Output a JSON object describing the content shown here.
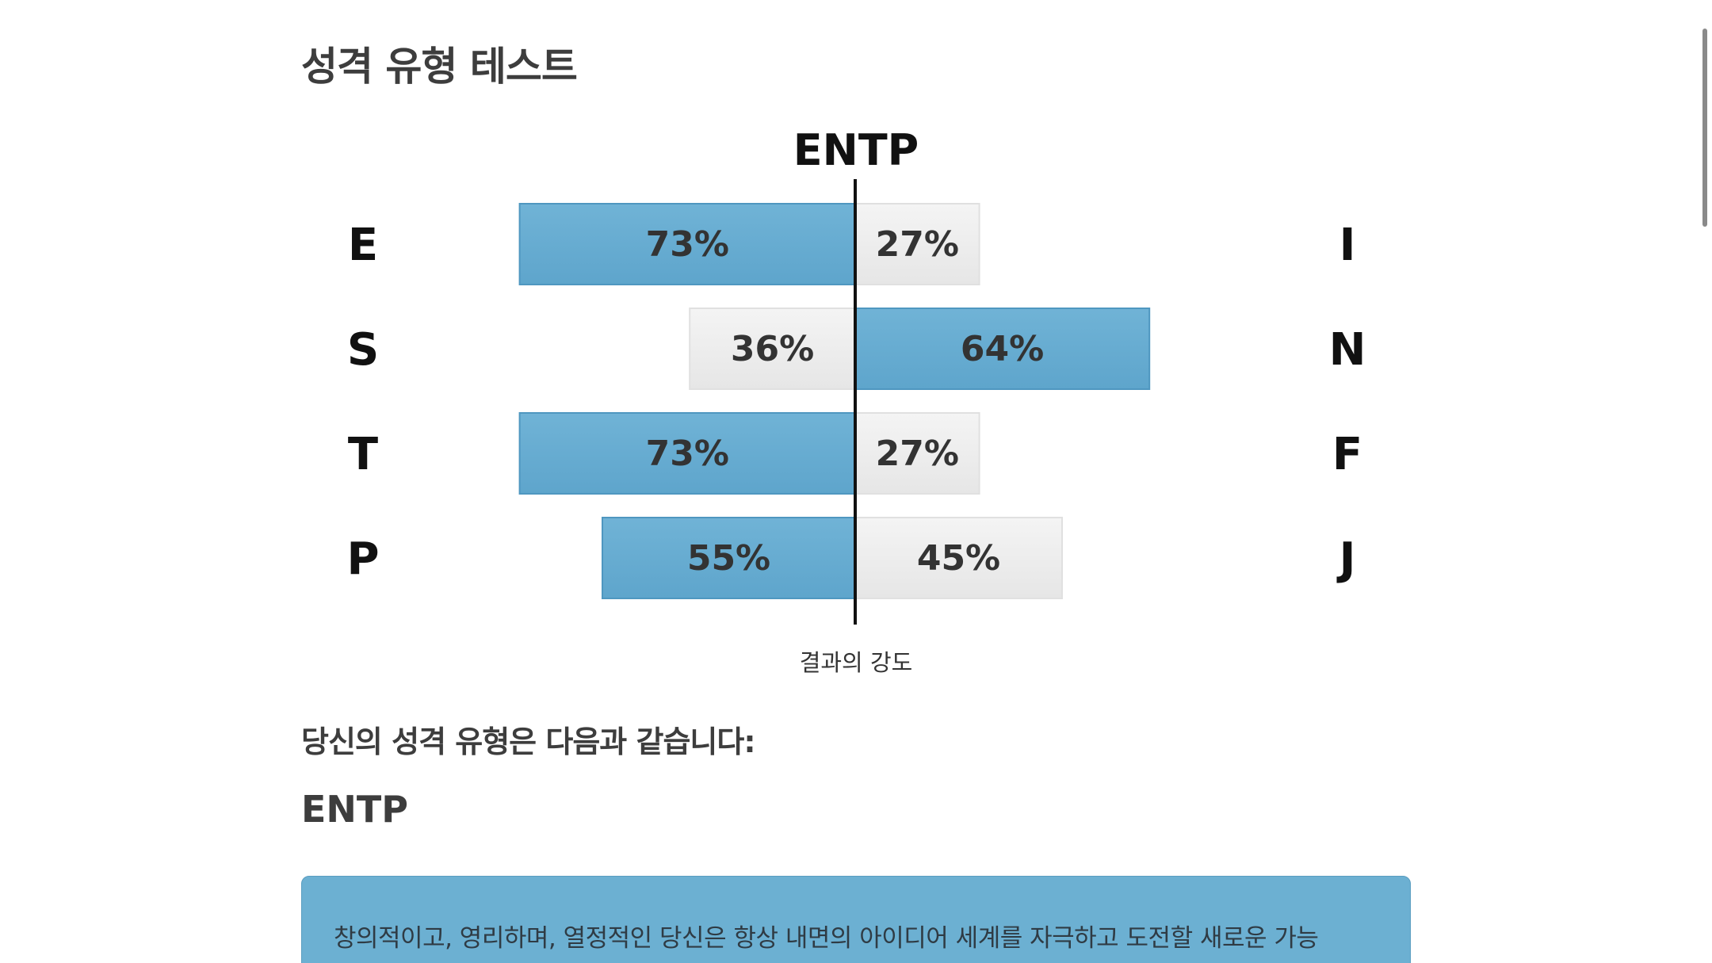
{
  "page": {
    "title": "성격 유형 테스트"
  },
  "chart_data": {
    "type": "bar",
    "title": "ENTP",
    "xlabel": "결과의 강도",
    "rows": [
      {
        "left_letter": "E",
        "right_letter": "I",
        "left_value": 73,
        "right_value": 27,
        "left_label": "73%",
        "right_label": "27%",
        "dominant": "left"
      },
      {
        "left_letter": "S",
        "right_letter": "N",
        "left_value": 36,
        "right_value": 64,
        "left_label": "36%",
        "right_label": "64%",
        "dominant": "right"
      },
      {
        "left_letter": "T",
        "right_letter": "F",
        "left_value": 73,
        "right_value": 27,
        "left_label": "73%",
        "right_label": "27%",
        "dominant": "left"
      },
      {
        "left_letter": "P",
        "right_letter": "J",
        "left_value": 55,
        "right_value": 45,
        "left_label": "55%",
        "right_label": "45%",
        "dominant": "left"
      }
    ],
    "colors": {
      "dominant": "#6aafd3",
      "secondary": "#ececec"
    }
  },
  "result": {
    "heading": "당신의 성격 유형은 다음과 같습니다:",
    "type": "ENTP",
    "description": "창의적이고, 영리하며, 열정적인 당신은 항상 내면의 아이디어 세계를 자극하고 도전할 새로운 가능"
  }
}
